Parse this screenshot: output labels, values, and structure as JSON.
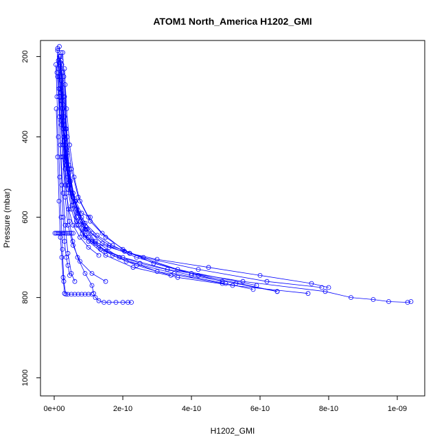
{
  "chart_data": {
    "type": "scatter",
    "title": "ATOM1 North_America H1202_GMI",
    "xlabel": "H1202_GMI",
    "ylabel": "Pressure (mbar)",
    "x_ticks": [
      0,
      2e-10,
      4e-10,
      6e-10,
      8e-10,
      1e-09
    ],
    "x_tick_labels": [
      "0e+00",
      "2e-10",
      "4e-10",
      "6e-10",
      "8e-10",
      "1e-09"
    ],
    "y_ticks": [
      200,
      400,
      600,
      800,
      1000
    ],
    "y_tick_labels": [
      "200",
      "400",
      "600",
      "800",
      "1000"
    ],
    "xlim": [
      -4e-11,
      1.08e-09
    ],
    "ylim": [
      1045,
      160
    ],
    "y_reversed": true,
    "color": "#0000ff",
    "marker": "open-circle",
    "profiles": [
      {
        "x": [
          1.5e-11,
          1.2e-11,
          1.8e-11,
          2.2e-11,
          2.8e-11,
          3.4e-11,
          4.2e-11,
          5.2e-11,
          6.5e-11,
          8.2e-11,
          1.1e-10,
          1.6e-10,
          2.2e-10,
          3e-10,
          4.5e-10,
          6e-10,
          7.5e-10,
          8e-10
        ],
        "y": [
          175,
          230,
          290,
          350,
          410,
          470,
          520,
          570,
          610,
          640,
          660,
          675,
          690,
          705,
          725,
          745,
          765,
          775
        ]
      },
      {
        "x": [
          1e-11,
          8e-12,
          1.4e-11,
          2e-11,
          2.6e-11,
          3.2e-11,
          4e-11,
          5e-11,
          6.5e-11,
          9e-11,
          1.3e-10,
          2e-10,
          3.3e-10,
          5.5e-10,
          7.9e-10,
          8.65e-10,
          9.3e-10,
          9.75e-10,
          1.03e-09,
          1.04e-09
        ],
        "y": [
          180,
          240,
          300,
          360,
          420,
          480,
          530,
          580,
          620,
          650,
          675,
          700,
          730,
          760,
          785,
          800,
          805,
          810,
          812,
          810
        ]
      },
      {
        "x": [
          2e-11,
          1.6e-11,
          2.2e-11,
          2.8e-11,
          3.5e-11,
          4.3e-11,
          5.5e-11,
          7e-11,
          9.5e-11,
          1.4e-10,
          2.4e-10,
          4e-10,
          6.5e-10
        ],
        "y": [
          190,
          250,
          310,
          370,
          430,
          490,
          540,
          590,
          630,
          665,
          700,
          740,
          785
        ]
      },
      {
        "x": [
          1.2e-11,
          2e-11,
          2.7e-11,
          3.4e-11,
          4.5e-11,
          6e-11,
          8e-11,
          1.1e-10,
          1.6e-10,
          2.6e-10,
          4.2e-10,
          6.2e-10,
          7.8e-10
        ],
        "y": [
          210,
          290,
          380,
          450,
          510,
          560,
          600,
          640,
          670,
          700,
          730,
          760,
          775
        ]
      },
      {
        "x": [
          1.8e-11,
          2.4e-11,
          3e-11,
          4e-11,
          5.5e-11,
          7.5e-11,
          1e-10,
          1.5e-10,
          2.5e-10,
          4e-10,
          5.3e-10,
          6.5e-10
        ],
        "y": [
          200,
          300,
          400,
          480,
          550,
          610,
          650,
          685,
          715,
          745,
          765,
          785
        ]
      },
      {
        "x": [
          2.2e-11,
          2.6e-11,
          3.2e-11,
          4e-11,
          5.2e-11,
          7e-11,
          1e-10,
          1.5e-10,
          2.3e-10,
          3.6e-10,
          5.2e-10,
          7.4e-10
        ],
        "y": [
          220,
          320,
          420,
          500,
          570,
          620,
          660,
          695,
          725,
          750,
          770,
          790
        ]
      },
      {
        "x": [
          2e-11,
          2.8e-11,
          3.6e-11,
          4.8e-11,
          6.5e-11,
          9e-11,
          1.35e-10,
          2.1e-10,
          3.5e-10,
          5e-10,
          5.8e-10
        ],
        "y": [
          260,
          360,
          460,
          540,
          600,
          645,
          680,
          710,
          740,
          765,
          780
        ]
      },
      {
        "x": [
          2.5e-11,
          3e-11,
          3.8e-11,
          5e-11,
          7e-11,
          1e-10,
          1.4e-10,
          2e-10,
          2.9e-10,
          4.2e-10,
          4.9e-10
        ],
        "y": [
          190,
          300,
          400,
          480,
          550,
          600,
          640,
          680,
          715,
          745,
          760
        ]
      },
      {
        "x": [
          3e-11,
          3.6e-11,
          4.5e-11,
          5.8e-11,
          7.5e-11,
          1.05e-10,
          1.5e-10,
          2.2e-10,
          3.6e-10,
          5.9e-10
        ],
        "y": [
          230,
          330,
          420,
          500,
          560,
          610,
          650,
          690,
          730,
          770
        ]
      },
      {
        "x": [
          2.8e-11,
          3.4e-11,
          4.4e-11,
          6e-11,
          8.5e-11,
          1.2e-10,
          1.9e-10,
          3e-10,
          4.9e-10
        ],
        "y": [
          250,
          380,
          480,
          560,
          620,
          660,
          700,
          735,
          765
        ]
      },
      {
        "x": [
          1.5e-11,
          2e-11,
          2.5e-11,
          3.2e-11,
          4e-11,
          5.5e-11,
          7.5e-11,
          1.1e-10,
          1.5e-10
        ],
        "y": [
          200,
          320,
          450,
          550,
          620,
          670,
          710,
          740,
          760
        ]
      },
      {
        "x": [
          3.2e-11,
          3.5e-11,
          4.2e-11,
          5.5e-11,
          7e-11,
          9e-11,
          1.2e-10,
          1.7e-10,
          2.4e-10,
          3.4e-10
        ],
        "y": [
          270,
          380,
          470,
          540,
          590,
          630,
          665,
          695,
          720,
          745
        ]
      },
      {
        "x": [
          1e-11,
          1.4e-11,
          2e-11,
          2.6e-11,
          3.3e-11,
          4.2e-11,
          5.5e-11,
          7.5e-11,
          1e-10,
          1.3e-10
        ],
        "y": [
          185,
          280,
          370,
          450,
          520,
          580,
          620,
          650,
          675,
          695
        ]
      },
      {
        "x": [
          1.8e-11,
          2.2e-11,
          2.8e-11,
          3.6e-11,
          4.8e-11,
          6.5e-11,
          9e-11,
          1.25e-10,
          1.7e-10,
          2.05e-10
        ],
        "y": [
          215,
          310,
          400,
          470,
          530,
          580,
          615,
          645,
          670,
          685
        ]
      },
      {
        "x": [
          2.4e-11,
          3e-11,
          3.8e-11,
          4.8e-11,
          6.2e-11,
          8e-11,
          1.05e-10
        ],
        "y": [
          240,
          350,
          440,
          510,
          560,
          590,
          600
        ]
      },
      {
        "x": [
          2e-11,
          2.6e-11,
          3.4e-11,
          4.4e-11,
          5.8e-11,
          7.6e-11,
          9.2e-11
        ],
        "y": [
          280,
          380,
          460,
          520,
          570,
          610,
          630
        ]
      },
      {
        "x": [
          2e-11,
          2.4e-11,
          3e-11,
          3.6e-11,
          4.4e-11,
          5.4e-11,
          6.8e-11,
          9e-11,
          1.1e-10,
          1.15e-10,
          1.2e-10,
          1.3e-10,
          1.45e-10,
          1.6e-10,
          1.8e-10,
          2e-10,
          2.15e-10,
          2.25e-10
        ],
        "y": [
          210,
          330,
          450,
          540,
          610,
          660,
          700,
          740,
          770,
          790,
          800,
          808,
          812,
          812,
          812,
          812,
          812,
          812
        ]
      },
      {
        "x": [
          5e-12,
          8e-12,
          1.2e-11,
          1.6e-11,
          2e-11,
          2.4e-11,
          2.8e-11,
          3.4e-11,
          4e-11,
          5e-11,
          6e-11,
          7e-11,
          8e-11,
          9e-11,
          1e-10,
          1.1e-10
        ],
        "y": [
          220,
          300,
          400,
          500,
          600,
          680,
          760,
          792,
          792,
          792,
          792,
          792,
          792,
          792,
          792,
          792
        ]
      },
      {
        "x": [
          1e-11,
          1.5e-11,
          2e-11,
          2.6e-11,
          3.2e-11,
          4e-11,
          5e-11,
          6e-11
        ],
        "y": [
          250,
          350,
          450,
          540,
          620,
          690,
          740,
          760
        ]
      },
      {
        "x": [
          1.4e-11,
          1.8e-11,
          2.2e-11,
          2.6e-11,
          3e-11,
          3.5e-11,
          4e-11,
          4.5e-11
        ],
        "y": [
          300,
          420,
          520,
          600,
          660,
          700,
          720,
          745
        ]
      },
      {
        "x": [
          6e-12,
          1e-11,
          1.4e-11,
          1.8e-11,
          2.2e-11,
          2.6e-11,
          3e-11
        ],
        "y": [
          330,
          450,
          560,
          650,
          700,
          750,
          790
        ]
      }
    ],
    "points_at_640": {
      "x": [
        2e-12,
        6e-12,
        1e-11,
        1.4e-11,
        1.8e-11,
        2.2e-11,
        2.6e-11,
        3e-11,
        3.5e-11,
        4e-11,
        4.5e-11,
        5e-11,
        5.5e-11
      ],
      "y": 640
    },
    "grid": false,
    "legend": "none"
  }
}
